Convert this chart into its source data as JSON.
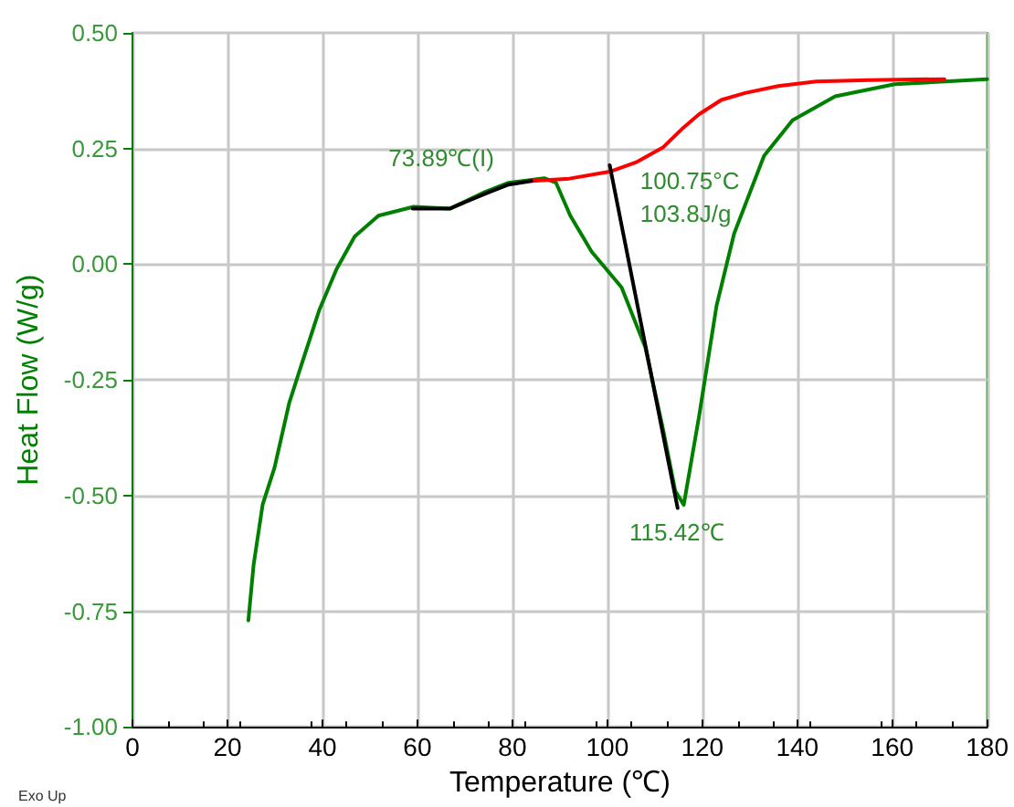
{
  "chart_data": {
    "type": "line",
    "xlabel": "Temperature (℃)",
    "ylabel": "Heat Flow (W/g)",
    "xlim": [
      0,
      180
    ],
    "xticks": [
      0,
      20,
      40,
      60,
      80,
      100,
      120,
      140,
      160,
      180
    ],
    "ylim": [
      -1,
      0.5
    ],
    "yticks": [
      {
        "value": -1,
        "label": "-1.00"
      },
      {
        "value": -0.75,
        "label": "-0.75"
      },
      {
        "value": -0.5,
        "label": "-0.50"
      },
      {
        "value": -0.25,
        "label": "-0.25"
      },
      {
        "value": 0,
        "label": "0.00"
      },
      {
        "value": 0.25,
        "label": "0.25"
      },
      {
        "value": 0.5,
        "label": "0.50"
      }
    ],
    "grid": true,
    "marker": "none",
    "line_style": "solid",
    "series": [
      {
        "color": "#008000",
        "x": [
          24.4,
          25.5,
          27.4,
          29.9,
          33,
          35.5,
          39.3,
          43,
          46.8,
          51.8,
          59.2,
          66.8,
          74.2,
          79.2,
          86.7,
          89.2,
          92.2,
          96.7,
          103,
          108,
          111.8,
          114.3,
          116.1,
          119.3,
          123,
          126.7,
          133,
          139,
          148,
          160.5,
          180
        ],
        "values": [
          -0.77,
          -0.65,
          -0.52,
          -0.44,
          -0.3,
          -0.22,
          -0.1,
          -0.01,
          0.06,
          0.105,
          0.124,
          0.12,
          0.156,
          0.176,
          0.186,
          0.176,
          0.105,
          0.027,
          -0.05,
          -0.18,
          -0.36,
          -0.49,
          -0.52,
          -0.33,
          -0.09,
          0.066,
          0.234,
          0.311,
          0.363,
          0.389,
          0.4
        ]
      },
      {
        "color": "#ff0000",
        "x": [
          84,
          92,
          100.5,
          106,
          111.8,
          116,
          119.3,
          124,
          129,
          136,
          144,
          155,
          171
        ],
        "values": [
          0.18,
          0.185,
          0.2,
          0.22,
          0.253,
          0.295,
          0.324,
          0.355,
          0.37,
          0.385,
          0.395,
          0.398,
          0.4
        ]
      },
      {
        "color": "#000000",
        "x": [
          59,
          66.8,
          74.2,
          79.2,
          84
        ],
        "values": [
          0.12,
          0.12,
          0.152,
          0.172,
          0.18
        ]
      },
      {
        "color": "#000000",
        "x": [
          100.5,
          114.8
        ],
        "values": [
          0.214,
          -0.527
        ]
      }
    ],
    "annotations": [
      "Exo Up",
      {
        "text": "73.89℃(I)",
        "x": 73.89,
        "y": 0.155
      },
      {
        "text": "100.75°C",
        "x": 100.75,
        "y": 0.2
      },
      "103.8J/g",
      {
        "text": "115.42℃",
        "x": 115.42,
        "y": -0.52
      }
    ]
  }
}
